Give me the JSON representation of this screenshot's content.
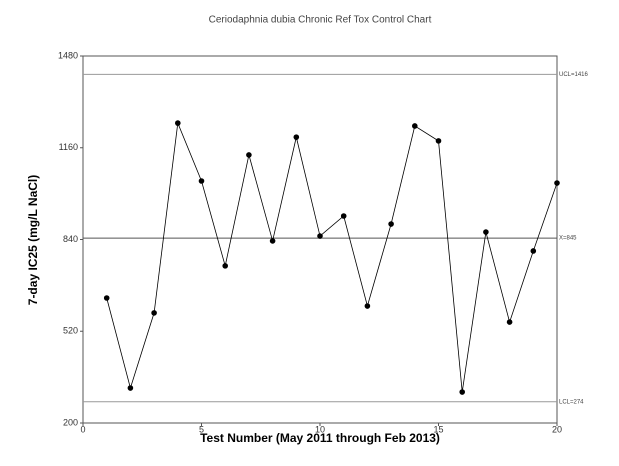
{
  "chart_data": {
    "type": "line",
    "title": "Ceriodaphnia dubia Chronic Ref Tox Control Chart",
    "xlabel": "Test Number (May 2011 through Feb 2013)",
    "ylabel": "7-day IC25 (mg/L NaCl)",
    "x": [
      1,
      2,
      3,
      4,
      5,
      6,
      7,
      8,
      9,
      10,
      11,
      12,
      13,
      14,
      15,
      16,
      17,
      18,
      19,
      20
    ],
    "series": [
      {
        "color": "#000000",
        "values": [
          636,
          322,
          584,
          1246,
          1044,
          748,
          1135,
          835,
          1197,
          852,
          922,
          608,
          894,
          1236,
          1184,
          308,
          866,
          552,
          800,
          1037
        ]
      }
    ],
    "control_lines": [
      {
        "label": "UCL=1416",
        "value": 1416,
        "color": "#999999"
      },
      {
        "label": "X=845",
        "value": 845,
        "color": "#555555"
      },
      {
        "label": "LCL=274",
        "value": 274,
        "color": "#999999"
      }
    ],
    "xlim": [
      0,
      20
    ],
    "xticks": [
      0,
      5,
      10,
      15,
      20
    ],
    "ylim": [
      200,
      1480
    ],
    "yticks": [
      200,
      520,
      840,
      1160,
      1480
    ]
  }
}
